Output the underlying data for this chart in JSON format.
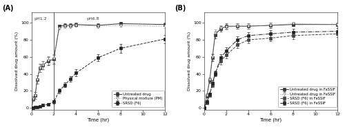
{
  "panel_A": {
    "title_label": "(A)",
    "vline_x": 2.0,
    "ph1_x": 0.8,
    "ph68_x": 5.5,
    "xlabel": "Time (hr)",
    "ylabel": "Dissolved drug amount (%)",
    "xlim": [
      0,
      12
    ],
    "ylim": [
      -2,
      112
    ],
    "xticks": [
      0,
      2,
      4,
      6,
      8,
      10,
      12
    ],
    "yticks": [
      0,
      20,
      40,
      60,
      80,
      100
    ],
    "series": [
      {
        "label": "Untreated drug",
        "x": [
          0,
          0.17,
          0.33,
          0.5,
          0.75,
          1.0,
          1.5,
          2.0,
          2.5,
          3.0,
          3.5,
          4.0,
          6.0,
          8.0,
          12.0
        ],
        "y": [
          0,
          11,
          15,
          33,
          47,
          50,
          55,
          57,
          96,
          97,
          97,
          98,
          97,
          99,
          98
        ],
        "yerr": [
          0,
          3,
          4,
          5,
          5,
          5,
          5,
          5,
          2,
          2,
          2,
          2,
          2,
          2,
          2
        ],
        "linestyle": "-",
        "marker": "s",
        "color": "#333333",
        "markersize": 2.5,
        "mfc": "#333333"
      },
      {
        "label": "Physical mixture (PM)",
        "x": [
          0,
          0.17,
          0.33,
          0.5,
          0.75,
          1.0,
          1.5,
          2.0,
          2.5,
          3.0,
          3.5,
          4.0,
          6.0,
          8.0,
          12.0
        ],
        "y": [
          0,
          11,
          15,
          33,
          47,
          50,
          56,
          58,
          94,
          96,
          96,
          97,
          96,
          97,
          96
        ],
        "yerr": [
          0,
          3,
          4,
          5,
          5,
          5,
          5,
          5,
          2,
          2,
          2,
          2,
          2,
          2,
          2
        ],
        "linestyle": ":",
        "marker": "v",
        "color": "#888888",
        "markersize": 2.5,
        "mfc": "white"
      },
      {
        "label": "SRSD (F6)",
        "x": [
          0,
          0.17,
          0.33,
          0.5,
          0.75,
          1.0,
          1.5,
          2.0,
          2.5,
          3.0,
          3.5,
          4.0,
          6.0,
          8.0,
          12.0
        ],
        "y": [
          0,
          0.5,
          1,
          1,
          2,
          3,
          4,
          7,
          20,
          27,
          34,
          41,
          59,
          70,
          81
        ],
        "yerr": [
          0,
          0.3,
          0.5,
          0.5,
          0.5,
          1,
          1,
          2,
          3,
          3,
          3,
          4,
          4,
          5,
          5
        ],
        "linestyle": "--",
        "marker": "s",
        "color": "#222222",
        "markersize": 2.5,
        "mfc": "#222222"
      }
    ]
  },
  "panel_B": {
    "title_label": "(B)",
    "xlabel": "Time (hr)",
    "ylabel": "Dissolved drug amount (%)",
    "xlim": [
      0,
      12
    ],
    "ylim": [
      -2,
      112
    ],
    "xticks": [
      0,
      2,
      4,
      6,
      8,
      10,
      12
    ],
    "yticks": [
      0,
      20,
      40,
      60,
      80,
      100
    ],
    "series": [
      {
        "label": "Untreated drug in FaSSIF",
        "x": [
          0,
          0.25,
          0.5,
          0.75,
          1.0,
          1.5,
          2.0,
          3.0,
          4.0,
          6.0,
          8.0,
          12.0
        ],
        "y": [
          0,
          14,
          32,
          59,
          86,
          93,
          96,
          96,
          96,
          97,
          98,
          98
        ],
        "yerr": [
          0,
          2,
          3,
          4,
          4,
          3,
          3,
          3,
          3,
          3,
          2,
          2
        ],
        "linestyle": "-",
        "marker": "s",
        "color": "#333333",
        "markersize": 2.5,
        "mfc": "#333333"
      },
      {
        "label": "Untreated drug in FeSSIF",
        "x": [
          0,
          0.25,
          0.5,
          0.75,
          1.0,
          1.5,
          2.0,
          3.0,
          4.0,
          6.0,
          8.0,
          12.0
        ],
        "y": [
          0,
          15,
          33,
          60,
          88,
          94,
          95,
          96,
          96,
          97,
          99,
          98
        ],
        "yerr": [
          0,
          2,
          3,
          4,
          4,
          3,
          3,
          3,
          3,
          3,
          2,
          2
        ],
        "linestyle": ":",
        "marker": "v",
        "color": "#888888",
        "markersize": 2.5,
        "mfc": "white"
      },
      {
        "label": "SRSD (F6) in FaSSIF",
        "x": [
          0,
          0.25,
          0.5,
          0.75,
          1.0,
          1.5,
          2.0,
          3.0,
          4.0,
          6.0,
          8.0,
          12.0
        ],
        "y": [
          0,
          6,
          15,
          27,
          41,
          55,
          62,
          74,
          80,
          82,
          85,
          87
        ],
        "yerr": [
          0,
          1,
          2,
          3,
          3,
          4,
          4,
          4,
          4,
          4,
          4,
          4
        ],
        "linestyle": "--",
        "marker": "s",
        "color": "#444444",
        "markersize": 2.5,
        "mfc": "#444444"
      },
      {
        "label": "SRSD (F6) in FeSSIF",
        "x": [
          0,
          0.25,
          0.5,
          0.75,
          1.0,
          1.5,
          2.0,
          3.0,
          4.0,
          6.0,
          8.0,
          12.0
        ],
        "y": [
          0,
          7,
          16,
          29,
          40,
          59,
          67,
          80,
          85,
          87,
          89,
          90
        ],
        "yerr": [
          0,
          1,
          2,
          3,
          3,
          4,
          4,
          4,
          4,
          4,
          4,
          4
        ],
        "linestyle": "-.",
        "marker": "s",
        "color": "#222222",
        "markersize": 2.5,
        "mfc": "#222222"
      }
    ]
  }
}
